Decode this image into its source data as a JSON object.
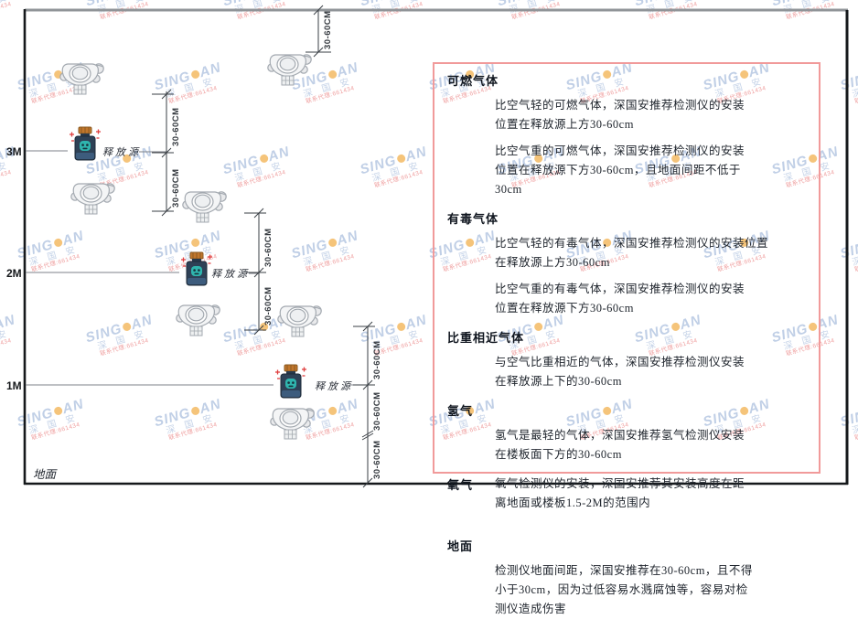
{
  "watermark": {
    "brand_left": "SING",
    "brand_right": "AN",
    "cjk_line": "深 国 安",
    "agent_line": "联系代理:661434"
  },
  "diagram": {
    "height_labels": [
      "3M",
      "2M",
      "1M"
    ],
    "ground_label": "地面",
    "source_label": "释放源",
    "dim_label": "30-60CM",
    "icons": {
      "detector": "gas-detector-icon",
      "source": "gas-release-source-icon"
    }
  },
  "panel": {
    "sections": [
      {
        "heading": "可燃气体",
        "paragraphs": [
          "比空气轻的可燃气体，深国安推荐检测仪的安装\n位置在释放源上方30-60cm",
          "比空气重的可燃气体，深国安推荐检测仪的安装\n位置在释放源下方30-60cm，且地面间距不低于\n30cm"
        ]
      },
      {
        "heading": "有毒气体",
        "paragraphs": [
          "比空气轻的有毒气体，深国安推荐检测仪的安装位置\n在释放源上方30-60cm",
          "比空气重的有毒气体，深国安推荐检测仪的安装\n位置在释放源下方30-60cm"
        ]
      },
      {
        "heading": "比重相近气体",
        "paragraphs": [
          "与空气比重相近的气体，深国安推荐检测仪安装\n在释放源上下的30-60cm"
        ]
      },
      {
        "heading": "氢气",
        "paragraphs": [
          "氢气是最轻的气体，深国安推荐氢气检测仪安装\n在楼板面下方的30-60cm"
        ]
      },
      {
        "heading": "氧气",
        "paragraphs": [
          "氧气检测仪的安装，深国安推荐其安装高度在距\n离地面或楼板1.5-2M的范围内"
        ]
      },
      {
        "heading": "地面",
        "paragraphs": [
          "检测仪地面间距，深国安推荐在30-60cm，且不得\n小于30cm，因为过低容易水溅腐蚀等，容易对检\n测仪造成伤害"
        ]
      }
    ]
  },
  "colors": {
    "panel_border": "#f19a9a",
    "source_cap_orange": "#c1762c",
    "source_body_navy": "#2e4156",
    "source_face_teal": "#2fb5ae",
    "watermark_blue": "#8ca8d2",
    "line_dark": "#3a3f45",
    "text_dark": "#20262e"
  }
}
